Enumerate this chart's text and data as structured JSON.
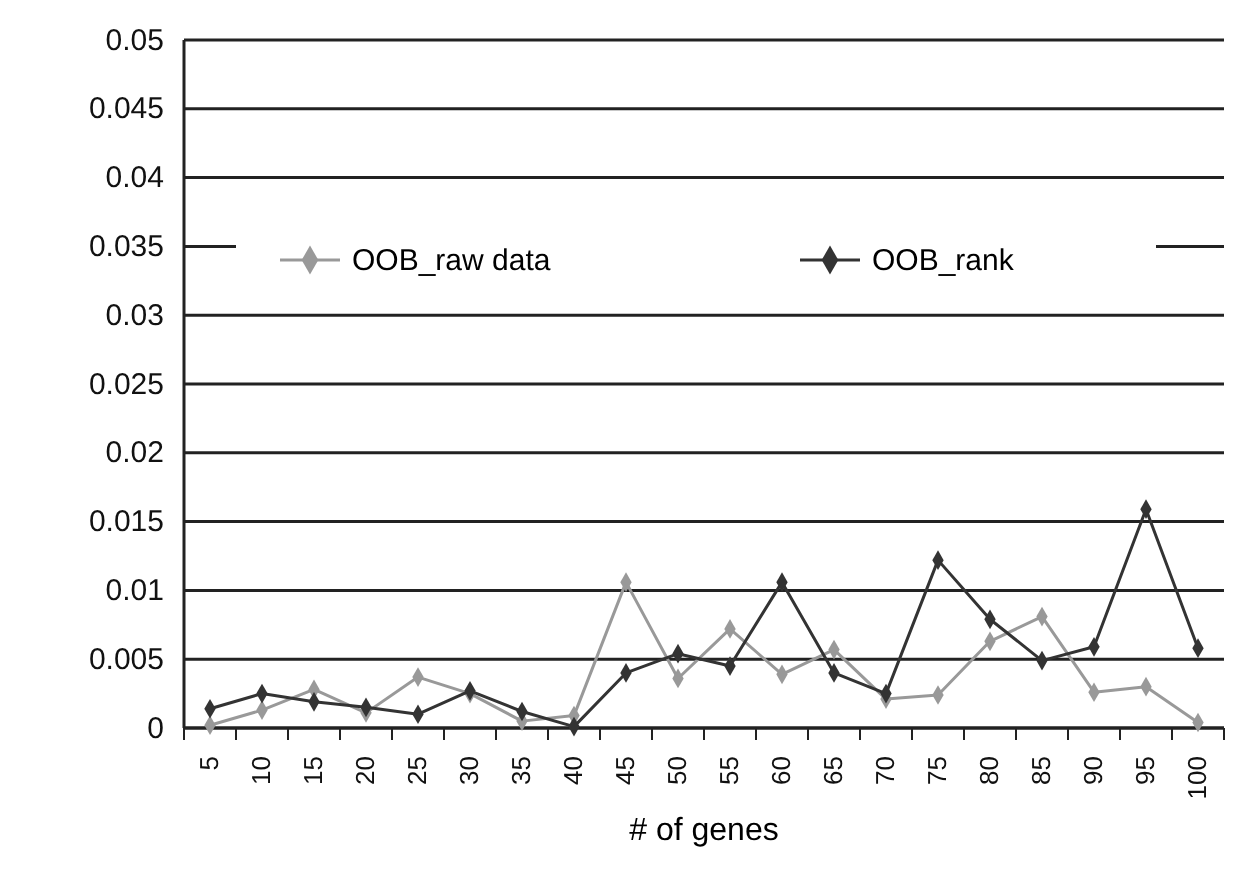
{
  "chart_data": {
    "type": "line",
    "xlabel": "# of genes",
    "categories": [
      "5",
      "10",
      "15",
      "20",
      "25",
      "30",
      "35",
      "40",
      "45",
      "50",
      "55",
      "60",
      "65",
      "70",
      "75",
      "80",
      "85",
      "90",
      "95",
      "100"
    ],
    "series": [
      {
        "name": "OOB_raw data",
        "color": "#999999",
        "values": [
          0.0002,
          0.0013,
          0.0028,
          0.0011,
          0.0037,
          0.0025,
          0.0005,
          0.0009,
          0.0106,
          0.0036,
          0.0072,
          0.0039,
          0.0057,
          0.0021,
          0.0024,
          0.0063,
          0.0081,
          0.0026,
          0.003,
          0.0004
        ]
      },
      {
        "name": "OOB_rank",
        "color": "#333333",
        "values": [
          0.0014,
          0.0025,
          0.0019,
          0.0015,
          0.001,
          0.0027,
          0.0012,
          0.0001,
          0.004,
          0.0054,
          0.0045,
          0.0106,
          0.004,
          0.0025,
          0.0122,
          0.0079,
          0.0049,
          0.0059,
          0.0159,
          0.0058
        ]
      }
    ],
    "ylim": [
      0,
      0.05
    ],
    "yticks": [
      0,
      0.005,
      0.01,
      0.015,
      0.02,
      0.025,
      0.03,
      0.035,
      0.04,
      0.045,
      0.05
    ],
    "grid": "y",
    "legend": "top",
    "marker": "diamond",
    "line_style": "solid"
  }
}
